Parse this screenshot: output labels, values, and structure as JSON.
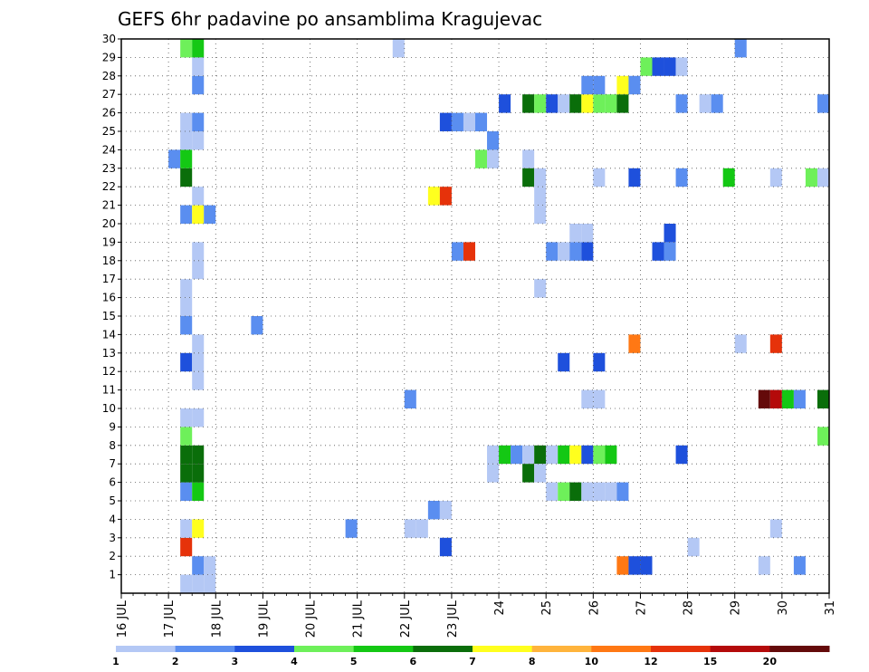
{
  "chart_data": {
    "type": "heatmap",
    "title": "GEFS 6hr padavine po ansamblima Kragujevac",
    "x_tick_labels": [
      "16 JUL",
      "17 JUL",
      "18 JUL",
      "19 JUL",
      "20 JUL",
      "21 JUL",
      "22 JUL",
      "23 JUL",
      "24",
      "25",
      "26",
      "27",
      "28",
      "29",
      "30",
      "31"
    ],
    "y_tick_labels": [
      "1",
      "2",
      "3",
      "4",
      "5",
      "6",
      "7",
      "8",
      "9",
      "10",
      "11",
      "12",
      "13",
      "14",
      "15",
      "16",
      "17",
      "18",
      "19",
      "20",
      "21",
      "22",
      "23",
      "24",
      "25",
      "26",
      "27",
      "28",
      "29",
      "30"
    ],
    "x_range": [
      16,
      31
    ],
    "y_range": [
      0,
      30
    ],
    "grid": true,
    "legend_labels": [
      "1",
      "2",
      "3",
      "4",
      "5",
      "6",
      "7",
      "8",
      "10",
      "12",
      "15",
      "20"
    ],
    "legend_colors": [
      "#b4c8f5",
      "#5a8ef0",
      "#1e50dc",
      "#6ef05a",
      "#14c814",
      "#0a6e0a",
      "#ffff1e",
      "#ffb43c",
      "#ff7814",
      "#e6320a",
      "#b40a0a",
      "#640a0a"
    ],
    "cells": [
      {
        "x": 17.25,
        "y": 0,
        "level": 1
      },
      {
        "x": 17.5,
        "y": 0,
        "level": 1
      },
      {
        "x": 17.75,
        "y": 0,
        "level": 1
      },
      {
        "x": 17.5,
        "y": 1,
        "level": 2
      },
      {
        "x": 17.75,
        "y": 1,
        "level": 1
      },
      {
        "x": 17.25,
        "y": 2,
        "level": 10
      },
      {
        "x": 17.25,
        "y": 3,
        "level": 1
      },
      {
        "x": 17.5,
        "y": 3,
        "level": 7
      },
      {
        "x": 17.25,
        "y": 5,
        "level": 2
      },
      {
        "x": 17.5,
        "y": 5,
        "level": 5
      },
      {
        "x": 17.25,
        "y": 6,
        "level": 6
      },
      {
        "x": 17.5,
        "y": 6,
        "level": 6
      },
      {
        "x": 17.25,
        "y": 7,
        "level": 6
      },
      {
        "x": 17.5,
        "y": 7,
        "level": 6
      },
      {
        "x": 17.25,
        "y": 8,
        "level": 4
      },
      {
        "x": 17.25,
        "y": 9,
        "level": 1
      },
      {
        "x": 17.5,
        "y": 9,
        "level": 1
      },
      {
        "x": 17.5,
        "y": 11,
        "level": 1
      },
      {
        "x": 17.25,
        "y": 12,
        "level": 3
      },
      {
        "x": 17.5,
        "y": 12,
        "level": 1
      },
      {
        "x": 17.5,
        "y": 13,
        "level": 1
      },
      {
        "x": 17.25,
        "y": 14,
        "level": 2
      },
      {
        "x": 17.25,
        "y": 15,
        "level": 1
      },
      {
        "x": 17.25,
        "y": 16,
        "level": 1
      },
      {
        "x": 17.5,
        "y": 17,
        "level": 1
      },
      {
        "x": 17.5,
        "y": 18,
        "level": 1
      },
      {
        "x": 17.25,
        "y": 20,
        "level": 2
      },
      {
        "x": 17.5,
        "y": 20,
        "level": 7
      },
      {
        "x": 17.75,
        "y": 20,
        "level": 2
      },
      {
        "x": 17.5,
        "y": 21,
        "level": 1
      },
      {
        "x": 17.25,
        "y": 22,
        "level": 6
      },
      {
        "x": 17.0,
        "y": 23,
        "level": 2
      },
      {
        "x": 17.25,
        "y": 23,
        "level": 5
      },
      {
        "x": 17.25,
        "y": 24,
        "level": 1
      },
      {
        "x": 17.5,
        "y": 24,
        "level": 1
      },
      {
        "x": 17.25,
        "y": 25,
        "level": 1
      },
      {
        "x": 17.5,
        "y": 25,
        "level": 2
      },
      {
        "x": 17.5,
        "y": 27,
        "level": 2
      },
      {
        "x": 17.5,
        "y": 28,
        "level": 1
      },
      {
        "x": 17.25,
        "y": 29,
        "level": 4
      },
      {
        "x": 17.5,
        "y": 29,
        "level": 5
      },
      {
        "x": 18.75,
        "y": 14,
        "level": 2
      },
      {
        "x": 20.75,
        "y": 3,
        "level": 2
      },
      {
        "x": 21.75,
        "y": 29,
        "level": 1
      },
      {
        "x": 22.0,
        "y": 3,
        "level": 1
      },
      {
        "x": 22.25,
        "y": 3,
        "level": 1
      },
      {
        "x": 22.0,
        "y": 10,
        "level": 2
      },
      {
        "x": 22.5,
        "y": 4,
        "level": 2
      },
      {
        "x": 22.75,
        "y": 4,
        "level": 1
      },
      {
        "x": 22.75,
        "y": 2,
        "level": 3
      },
      {
        "x": 22.5,
        "y": 21,
        "level": 7
      },
      {
        "x": 22.75,
        "y": 21,
        "level": 10
      },
      {
        "x": 22.75,
        "y": 25,
        "level": 3
      },
      {
        "x": 23.0,
        "y": 25,
        "level": 2
      },
      {
        "x": 23.25,
        "y": 25,
        "level": 1
      },
      {
        "x": 23.5,
        "y": 25,
        "level": 2
      },
      {
        "x": 23.0,
        "y": 18,
        "level": 2
      },
      {
        "x": 23.25,
        "y": 18,
        "level": 10
      },
      {
        "x": 23.5,
        "y": 23,
        "level": 4
      },
      {
        "x": 23.75,
        "y": 23,
        "level": 1
      },
      {
        "x": 23.75,
        "y": 24,
        "level": 2
      },
      {
        "x": 23.75,
        "y": 6,
        "level": 1
      },
      {
        "x": 23.75,
        "y": 7,
        "level": 1
      },
      {
        "x": 24.0,
        "y": 7,
        "level": 5
      },
      {
        "x": 24.25,
        "y": 7,
        "level": 2
      },
      {
        "x": 24.5,
        "y": 7,
        "level": 1
      },
      {
        "x": 24.75,
        "y": 7,
        "level": 6
      },
      {
        "x": 25.0,
        "y": 7,
        "level": 1
      },
      {
        "x": 25.25,
        "y": 7,
        "level": 5
      },
      {
        "x": 25.5,
        "y": 7,
        "level": 7
      },
      {
        "x": 25.75,
        "y": 7,
        "level": 3
      },
      {
        "x": 26.0,
        "y": 7,
        "level": 4
      },
      {
        "x": 26.25,
        "y": 7,
        "level": 5
      },
      {
        "x": 24.5,
        "y": 6,
        "level": 6
      },
      {
        "x": 24.75,
        "y": 6,
        "level": 1
      },
      {
        "x": 24.0,
        "y": 26,
        "level": 3
      },
      {
        "x": 24.5,
        "y": 26,
        "level": 6
      },
      {
        "x": 24.75,
        "y": 26,
        "level": 4
      },
      {
        "x": 25.0,
        "y": 26,
        "level": 3
      },
      {
        "x": 25.25,
        "y": 26,
        "level": 1
      },
      {
        "x": 25.5,
        "y": 26,
        "level": 6
      },
      {
        "x": 25.75,
        "y": 26,
        "level": 7
      },
      {
        "x": 26.0,
        "y": 26,
        "level": 4
      },
      {
        "x": 26.25,
        "y": 26,
        "level": 4
      },
      {
        "x": 26.5,
        "y": 26,
        "level": 6
      },
      {
        "x": 24.5,
        "y": 23,
        "level": 1
      },
      {
        "x": 24.5,
        "y": 22,
        "level": 6
      },
      {
        "x": 24.75,
        "y": 22,
        "level": 1
      },
      {
        "x": 24.75,
        "y": 21,
        "level": 1
      },
      {
        "x": 24.75,
        "y": 20,
        "level": 1
      },
      {
        "x": 24.75,
        "y": 16,
        "level": 1
      },
      {
        "x": 25.0,
        "y": 5,
        "level": 1
      },
      {
        "x": 25.25,
        "y": 5,
        "level": 4
      },
      {
        "x": 25.5,
        "y": 5,
        "level": 6
      },
      {
        "x": 25.75,
        "y": 5,
        "level": 1
      },
      {
        "x": 26.0,
        "y": 5,
        "level": 1
      },
      {
        "x": 26.25,
        "y": 5,
        "level": 1
      },
      {
        "x": 26.5,
        "y": 5,
        "level": 2
      },
      {
        "x": 25.0,
        "y": 18,
        "level": 2
      },
      {
        "x": 25.25,
        "y": 18,
        "level": 1
      },
      {
        "x": 25.5,
        "y": 18,
        "level": 2
      },
      {
        "x": 25.75,
        "y": 18,
        "level": 3
      },
      {
        "x": 25.5,
        "y": 19,
        "level": 1
      },
      {
        "x": 25.75,
        "y": 19,
        "level": 1
      },
      {
        "x": 25.25,
        "y": 12,
        "level": 3
      },
      {
        "x": 26.0,
        "y": 12,
        "level": 3
      },
      {
        "x": 25.75,
        "y": 10,
        "level": 1
      },
      {
        "x": 26.0,
        "y": 10,
        "level": 1
      },
      {
        "x": 26.0,
        "y": 22,
        "level": 1
      },
      {
        "x": 25.75,
        "y": 27,
        "level": 2
      },
      {
        "x": 26.0,
        "y": 27,
        "level": 2
      },
      {
        "x": 26.5,
        "y": 27,
        "level": 7
      },
      {
        "x": 26.75,
        "y": 27,
        "level": 2
      },
      {
        "x": 26.5,
        "y": 1,
        "level": 9
      },
      {
        "x": 26.75,
        "y": 1,
        "level": 3
      },
      {
        "x": 27.0,
        "y": 1,
        "level": 3
      },
      {
        "x": 26.75,
        "y": 13,
        "level": 9
      },
      {
        "x": 26.75,
        "y": 22,
        "level": 3
      },
      {
        "x": 27.0,
        "y": 28,
        "level": 4
      },
      {
        "x": 27.25,
        "y": 28,
        "level": 3
      },
      {
        "x": 27.5,
        "y": 28,
        "level": 3
      },
      {
        "x": 27.75,
        "y": 28,
        "level": 1
      },
      {
        "x": 27.25,
        "y": 18,
        "level": 3
      },
      {
        "x": 27.5,
        "y": 18,
        "level": 2
      },
      {
        "x": 27.5,
        "y": 19,
        "level": 3
      },
      {
        "x": 27.75,
        "y": 7,
        "level": 3
      },
      {
        "x": 27.75,
        "y": 22,
        "level": 2
      },
      {
        "x": 27.75,
        "y": 26,
        "level": 2
      },
      {
        "x": 28.0,
        "y": 2,
        "level": 1
      },
      {
        "x": 28.25,
        "y": 26,
        "level": 1
      },
      {
        "x": 28.5,
        "y": 26,
        "level": 2
      },
      {
        "x": 28.75,
        "y": 22,
        "level": 5
      },
      {
        "x": 29.0,
        "y": 29,
        "level": 2
      },
      {
        "x": 29.0,
        "y": 13,
        "level": 1
      },
      {
        "x": 29.5,
        "y": 1,
        "level": 1
      },
      {
        "x": 29.5,
        "y": 10,
        "level": 12
      },
      {
        "x": 29.75,
        "y": 10,
        "level": 11
      },
      {
        "x": 30.0,
        "y": 10,
        "level": 5
      },
      {
        "x": 30.25,
        "y": 10,
        "level": 2
      },
      {
        "x": 29.75,
        "y": 3,
        "level": 1
      },
      {
        "x": 29.75,
        "y": 13,
        "level": 10
      },
      {
        "x": 29.75,
        "y": 22,
        "level": 1
      },
      {
        "x": 30.25,
        "y": 1,
        "level": 2
      },
      {
        "x": 30.5,
        "y": 22,
        "level": 4
      },
      {
        "x": 30.75,
        "y": 22,
        "level": 1
      },
      {
        "x": 30.75,
        "y": 26,
        "level": 2
      },
      {
        "x": 30.75,
        "y": 10,
        "level": 6
      },
      {
        "x": 30.75,
        "y": 8,
        "level": 4
      }
    ]
  }
}
